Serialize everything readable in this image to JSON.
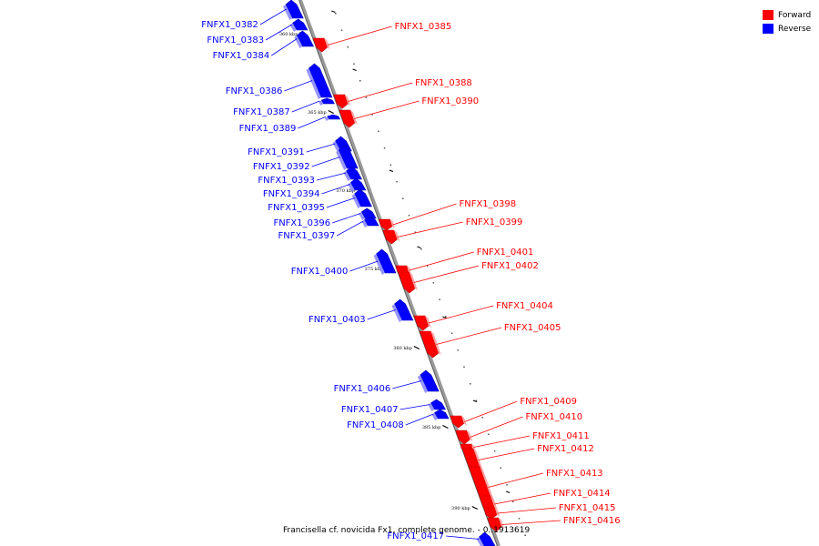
{
  "legend": {
    "forward_label": "Forward",
    "reverse_label": "Reverse",
    "forward_color": "#ff0000",
    "reverse_color": "#0000ff"
  },
  "caption": "Francisella cf. novicida Fx1, complete genome. - 0..1913619",
  "axis": {
    "ticks": [
      "360 kbp",
      "365 kbp",
      "370 kbp",
      "375 kbp",
      "380 kbp",
      "385 kbp",
      "390 kbp"
    ]
  },
  "genes": [
    {
      "name": "FNFX1_0382",
      "strand": "reverse"
    },
    {
      "name": "FNFX1_0383",
      "strand": "reverse"
    },
    {
      "name": "FNFX1_0384",
      "strand": "reverse"
    },
    {
      "name": "FNFX1_0385",
      "strand": "forward"
    },
    {
      "name": "FNFX1_0386",
      "strand": "reverse"
    },
    {
      "name": "FNFX1_0387",
      "strand": "reverse"
    },
    {
      "name": "FNFX1_0388",
      "strand": "forward"
    },
    {
      "name": "FNFX1_0389",
      "strand": "reverse"
    },
    {
      "name": "FNFX1_0390",
      "strand": "forward"
    },
    {
      "name": "FNFX1_0391",
      "strand": "reverse"
    },
    {
      "name": "FNFX1_0392",
      "strand": "reverse"
    },
    {
      "name": "FNFX1_0393",
      "strand": "reverse"
    },
    {
      "name": "FNFX1_0394",
      "strand": "reverse"
    },
    {
      "name": "FNFX1_0395",
      "strand": "reverse"
    },
    {
      "name": "FNFX1_0396",
      "strand": "reverse"
    },
    {
      "name": "FNFX1_0397",
      "strand": "reverse"
    },
    {
      "name": "FNFX1_0398",
      "strand": "forward"
    },
    {
      "name": "FNFX1_0399",
      "strand": "forward"
    },
    {
      "name": "FNFX1_0400",
      "strand": "reverse"
    },
    {
      "name": "FNFX1_0401",
      "strand": "forward"
    },
    {
      "name": "FNFX1_0402",
      "strand": "forward"
    },
    {
      "name": "FNFX1_0403",
      "strand": "reverse"
    },
    {
      "name": "FNFX1_0404",
      "strand": "forward"
    },
    {
      "name": "FNFX1_0405",
      "strand": "forward"
    },
    {
      "name": "FNFX1_0406",
      "strand": "reverse"
    },
    {
      "name": "FNFX1_0407",
      "strand": "reverse"
    },
    {
      "name": "FNFX1_0408",
      "strand": "reverse"
    },
    {
      "name": "FNFX1_0409",
      "strand": "forward"
    },
    {
      "name": "FNFX1_0410",
      "strand": "forward"
    },
    {
      "name": "FNFX1_0411",
      "strand": "forward"
    },
    {
      "name": "FNFX1_0412",
      "strand": "forward"
    },
    {
      "name": "FNFX1_0413",
      "strand": "forward"
    },
    {
      "name": "FNFX1_0414",
      "strand": "forward"
    },
    {
      "name": "FNFX1_0415",
      "strand": "forward"
    },
    {
      "name": "FNFX1_0416",
      "strand": "forward"
    },
    {
      "name": "FNFX1_0417",
      "strand": "reverse"
    }
  ]
}
